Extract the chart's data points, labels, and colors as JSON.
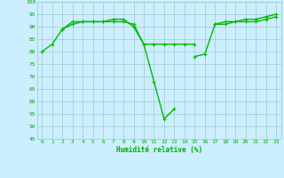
{
  "x": [
    0,
    1,
    2,
    3,
    4,
    5,
    6,
    7,
    8,
    9,
    10,
    11,
    12,
    13,
    14,
    15,
    16,
    17,
    18,
    19,
    20,
    21,
    22,
    23
  ],
  "series": {
    "s1": [
      80,
      83,
      89,
      92,
      92,
      92,
      92,
      93,
      93,
      90,
      83,
      68,
      53,
      57,
      null,
      78,
      79,
      91,
      92,
      92,
      93,
      93,
      94,
      95
    ],
    "s2": [
      null,
      null,
      89,
      91,
      92,
      92,
      92,
      92,
      92,
      91,
      83,
      83,
      83,
      83,
      83,
      83,
      null,
      91,
      91,
      92,
      92,
      92,
      93,
      94
    ]
  },
  "ylim": [
    45,
    100
  ],
  "yticks": [
    45,
    50,
    55,
    60,
    65,
    70,
    75,
    80,
    85,
    90,
    95,
    100
  ],
  "xlim": [
    -0.5,
    23.5
  ],
  "line_color": "#00bb00",
  "bg_color": "#cceeff",
  "grid_color": "#99cccc",
  "xlabel": "Humidité relative (%)",
  "xlabel_color": "#00aa00",
  "tick_color": "#00aa00",
  "markersize": 2.5,
  "linewidth": 1.0
}
